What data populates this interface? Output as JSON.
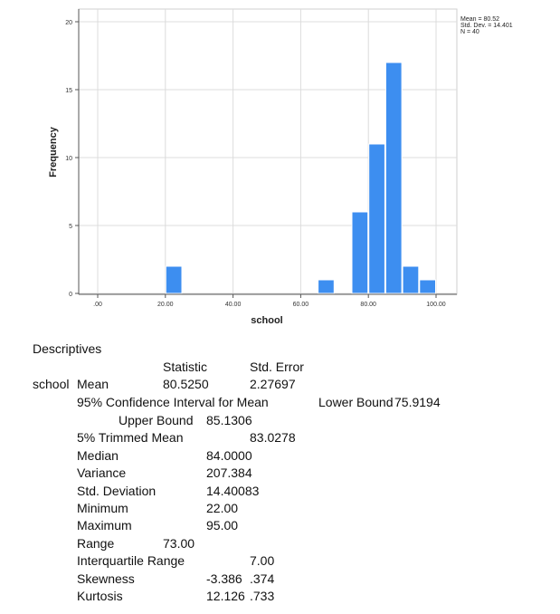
{
  "chart_data": {
    "type": "bar",
    "bin_width": 5,
    "bins": [
      {
        "start": 20,
        "end": 25,
        "count": 2
      },
      {
        "start": 65,
        "end": 70,
        "count": 1
      },
      {
        "start": 75,
        "end": 80,
        "count": 6
      },
      {
        "start": 80,
        "end": 85,
        "count": 11
      },
      {
        "start": 85,
        "end": 90,
        "count": 17
      },
      {
        "start": 90,
        "end": 95,
        "count": 2
      },
      {
        "start": 95,
        "end": 100,
        "count": 1
      }
    ],
    "xlabel": "school",
    "ylabel": "Frequency",
    "xlim": [
      0,
      100
    ],
    "ylim": [
      0,
      20
    ],
    "xticks": [
      ".00",
      "20.00",
      "40.00",
      "60.00",
      "80.00",
      "100.00"
    ],
    "yticks": [
      "0",
      "5",
      "10",
      "15",
      "20"
    ],
    "grid": true,
    "bar_color": "#3d8ef0",
    "legend": [
      "Mean = 80.52",
      "Std. Dev. = 14.401",
      "N = 40"
    ]
  },
  "table": {
    "title": "Descriptives",
    "statistic_header": "Statistic",
    "error_header": "Std. Error",
    "variable": "school",
    "mean_label": "Mean",
    "mean_value": "80.5250",
    "mean_error": "2.27697",
    "ci_label": "95% Confidence Interval for Mean",
    "lower_label": "Lower Bound",
    "lower_value": "75.9194",
    "upper_label": "Upper Bound",
    "upper_value": "85.1306",
    "trimmed_label": "5% Trimmed Mean",
    "trimmed_value": "83.0278",
    "median_label": "Median",
    "median_value": "84.0000",
    "variance_label": "Variance",
    "variance_value": "207.384",
    "sd_label": "Std. Deviation",
    "sd_value": "14.40083",
    "min_label": "Minimum",
    "min_value": "22.00",
    "max_label": "Maximum",
    "max_value": "95.00",
    "range_label": "Range",
    "range_value": "73.00",
    "iqr_label": "Interquartile Range",
    "iqr_value": "7.00",
    "skew_label": "Skewness",
    "skew_value": "-3.386",
    "skew_error": ".374",
    "kurt_label": "Kurtosis",
    "kurt_value": "12.126",
    "kurt_error": ".733"
  }
}
